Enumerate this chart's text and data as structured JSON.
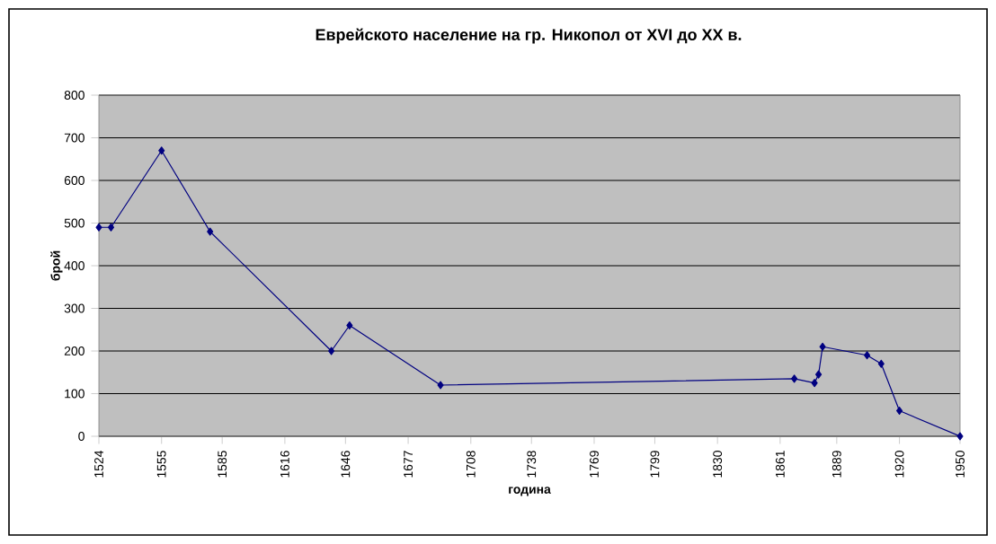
{
  "chart_data": {
    "type": "line",
    "title": "Еврейското население на гр. Никопол от XVI до XX в.",
    "xlabel": "година",
    "ylabel": "брой",
    "x": [
      1524,
      1530,
      1555,
      1579,
      1639,
      1648,
      1693,
      1868,
      1878,
      1880,
      1882,
      1904,
      1911,
      1920,
      1950
    ],
    "series": [
      {
        "color": "#000080",
        "values": [
          490,
          490,
          670,
          480,
          200,
          260,
          120,
          135,
          125,
          145,
          210,
          190,
          170,
          60,
          0
        ]
      }
    ],
    "xlim": [
      1524,
      1950
    ],
    "xticks": [
      1524,
      1555,
      1585,
      1616,
      1646,
      1677,
      1708,
      1738,
      1769,
      1799,
      1830,
      1861,
      1889,
      1920,
      1950
    ],
    "ylim": [
      0,
      800
    ],
    "yticks": [
      0,
      100,
      200,
      300,
      400,
      500,
      600,
      700,
      800
    ],
    "grid": "y",
    "marker": "diamond",
    "line_style": "solid"
  }
}
